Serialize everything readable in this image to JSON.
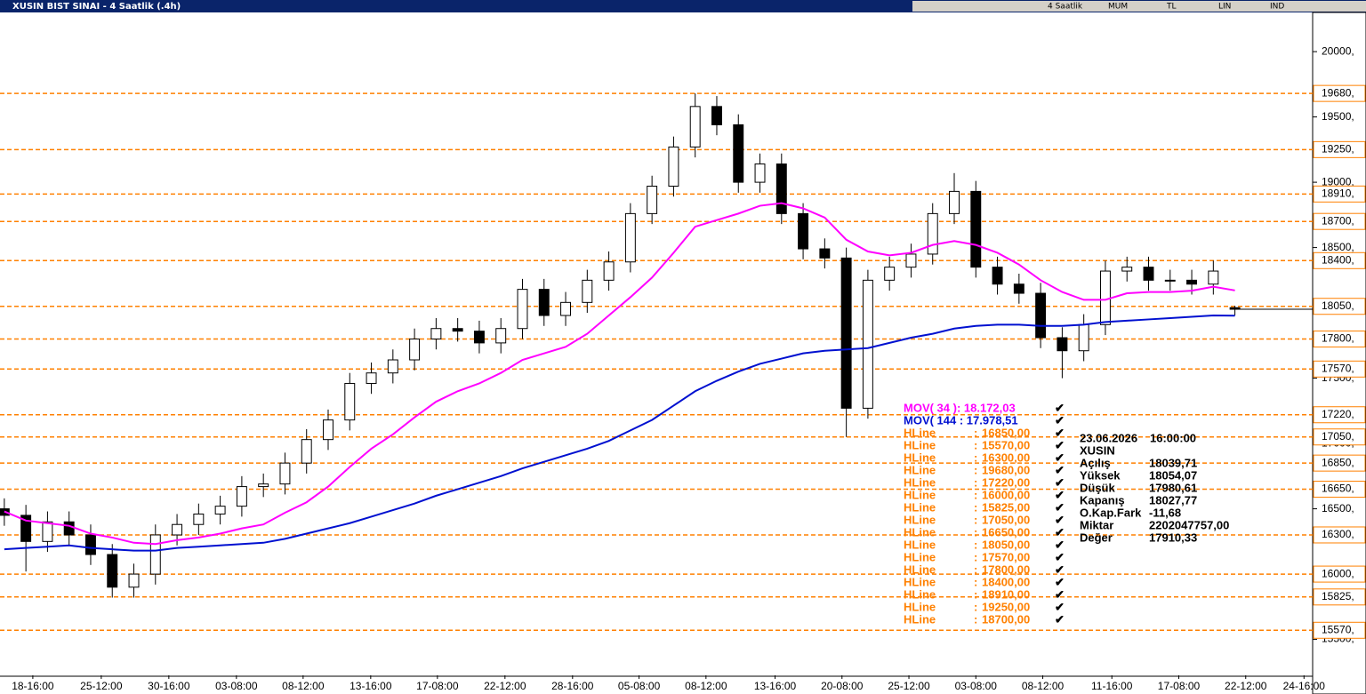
{
  "window": {
    "title": "XUSIN BIST SINAI - 4 Saatlik (.4h)",
    "toolbar": [
      "4 Saatlik",
      "MUM",
      "TL",
      "LIN",
      "IND"
    ]
  },
  "chart_data": {
    "type": "candlestick",
    "xlim": [
      -0.2,
      60.6
    ],
    "xticks": [
      {
        "value": 1.32,
        "label": "18-16:00"
      },
      {
        "value": 4.49,
        "label": "25-12:00"
      },
      {
        "value": 7.62,
        "label": "30-16:00"
      },
      {
        "value": 10.75,
        "label": "03-08:00"
      },
      {
        "value": 13.84,
        "label": "08-12:00"
      },
      {
        "value": 16.97,
        "label": "13-16:00"
      },
      {
        "value": 20.06,
        "label": "17-08:00"
      },
      {
        "value": 23.19,
        "label": "22-12:00"
      },
      {
        "value": 26.32,
        "label": "28-16:00"
      },
      {
        "value": 29.4,
        "label": "05-08:00"
      },
      {
        "value": 32.5,
        "label": "08-12:00"
      },
      {
        "value": 35.7,
        "label": "13-16:00"
      },
      {
        "value": 38.8,
        "label": "20-08:00"
      },
      {
        "value": 41.9,
        "label": "25-12:00"
      },
      {
        "value": 45.0,
        "label": "03-08:00"
      },
      {
        "value": 48.1,
        "label": "08-12:00"
      },
      {
        "value": 51.3,
        "label": "11-16:00"
      },
      {
        "value": 54.4,
        "label": "17-08:00"
      },
      {
        "value": 57.5,
        "label": "22-12:00"
      },
      {
        "value": 60.2,
        "label": "24-16:00"
      }
    ],
    "ylim": [
      15225,
      20300
    ],
    "yticks": [
      {
        "value": 20000,
        "label": "20000,"
      },
      {
        "value": 19500,
        "label": "19500,"
      },
      {
        "value": 19000,
        "label": "19000,"
      },
      {
        "value": 18500,
        "label": "18500,"
      },
      {
        "value": 17500,
        "label": "17500,"
      },
      {
        "value": 17000,
        "label": "17000,"
      },
      {
        "value": 16500,
        "label": "16500,"
      },
      {
        "value": 15500,
        "label": "15500,"
      }
    ],
    "open": [
      16500,
      16450,
      16250,
      16400,
      16300,
      16150,
      15900,
      16000,
      16300,
      16380,
      16460,
      16520,
      16670,
      16690,
      16850,
      17030,
      17180,
      17460,
      17540,
      17640,
      17800,
      17880,
      17860,
      17770,
      17880,
      18180,
      17980,
      18080,
      18250,
      18390,
      18760,
      18970,
      19270,
      19580,
      19440,
      19000,
      19140,
      18760,
      18490,
      18420,
      17270,
      18250,
      18350,
      18450,
      18760,
      18930,
      18350,
      18220,
      18150,
      17810,
      17710,
      17910,
      18320,
      18350,
      18250,
      18250,
      18220,
      18039.71
    ],
    "high": [
      16580,
      16530,
      16480,
      16480,
      16380,
      16230,
      16080,
      16380,
      16460,
      16540,
      16600,
      16750,
      16770,
      16930,
      17110,
      17260,
      17540,
      17620,
      17720,
      17880,
      17960,
      17960,
      17940,
      17960,
      18260,
      18260,
      18160,
      18330,
      18470,
      18840,
      19050,
      19350,
      19680,
      19660,
      19520,
      19220,
      19220,
      18840,
      18570,
      18500,
      18330,
      18430,
      18530,
      18840,
      19070,
      19010,
      18430,
      18300,
      18230,
      17890,
      17990,
      18400,
      18430,
      18430,
      18330,
      18330,
      18400,
      18054.07
    ],
    "low": [
      16370,
      16020,
      16170,
      16220,
      16070,
      15820,
      15820,
      15920,
      16220,
      16300,
      16380,
      16440,
      16590,
      16610,
      16770,
      16950,
      17100,
      17380,
      17460,
      17560,
      17720,
      17780,
      17690,
      17690,
      17800,
      17900,
      17900,
      18000,
      18170,
      18310,
      18680,
      18890,
      19190,
      19360,
      18920,
      18920,
      18680,
      18410,
      18340,
      17050,
      17190,
      18170,
      18270,
      18370,
      18680,
      18270,
      18140,
      18070,
      17730,
      17500,
      17630,
      17830,
      18240,
      18170,
      18170,
      18140,
      18140,
      17980.61
    ],
    "close": [
      16450,
      16250,
      16400,
      16300,
      16150,
      15900,
      16000,
      16300,
      16380,
      16460,
      16520,
      16670,
      16690,
      16850,
      17030,
      17180,
      17460,
      17540,
      17640,
      17800,
      17880,
      17860,
      17770,
      17880,
      18180,
      17980,
      18080,
      18250,
      18390,
      18760,
      18970,
      19270,
      19580,
      19440,
      19000,
      19140,
      18760,
      18490,
      18420,
      17270,
      18250,
      18350,
      18450,
      18760,
      18930,
      18350,
      18220,
      18150,
      17810,
      17710,
      17910,
      18320,
      18350,
      18250,
      18250,
      18220,
      18320,
      18027.77
    ],
    "up_color": "#ffffff",
    "down_color": "#000000",
    "series": [
      {
        "name": "MOV( 144 : 17.978,51",
        "color": "#0010d0",
        "values": [
          16190,
          16200,
          16210,
          16220,
          16200,
          16190,
          16180,
          16180,
          16200,
          16210,
          16220,
          16230,
          16240,
          16270,
          16310,
          16350,
          16390,
          16440,
          16490,
          16540,
          16600,
          16650,
          16700,
          16750,
          16810,
          16860,
          16910,
          16960,
          17020,
          17100,
          17180,
          17290,
          17400,
          17480,
          17550,
          17610,
          17650,
          17690,
          17710,
          17720,
          17730,
          17770,
          17810,
          17840,
          17880,
          17900,
          17910,
          17910,
          17900,
          17900,
          17910,
          17930,
          17940,
          17950,
          17960,
          17970,
          17980,
          17978.51
        ]
      },
      {
        "name": "MOV( 34 ): 18.172,03",
        "color": "#ff00ff",
        "values": [
          16480,
          16410,
          16390,
          16370,
          16310,
          16280,
          16240,
          16230,
          16260,
          16280,
          16310,
          16350,
          16380,
          16470,
          16550,
          16670,
          16820,
          16960,
          17070,
          17200,
          17320,
          17400,
          17460,
          17540,
          17640,
          17690,
          17740,
          17840,
          17980,
          18120,
          18270,
          18460,
          18660,
          18710,
          18760,
          18820,
          18840,
          18800,
          18730,
          18560,
          18470,
          18440,
          18460,
          18520,
          18550,
          18520,
          18460,
          18370,
          18250,
          18160,
          18100,
          18100,
          18150,
          18160,
          18160,
          18170,
          18200,
          18172.03
        ]
      }
    ],
    "hlines": {
      "name": "HLine",
      "separator": ":",
      "check": "✔",
      "color": "#ff8000",
      "values": [
        16850,
        15570,
        16300,
        19680,
        17220,
        16000,
        15825,
        17050,
        16650,
        18050,
        17570,
        17800,
        18400,
        18910,
        19250,
        18700
      ],
      "value_labels": [
        "16850,00",
        "15570,00",
        "16300,00",
        "19680,00",
        "17220,00",
        "16000,00",
        "15825,00",
        "17050,00",
        "16650,00",
        "18050,00",
        "17570,00",
        "17800,00",
        "18400,00",
        "18910,00",
        "19250,00",
        "18700,00"
      ],
      "axis_labels": [
        "16850,",
        "15570,",
        "16300,",
        "19680,",
        "17220,",
        "16000,",
        "15825,",
        "17050,",
        "16650,",
        "18050,",
        "17570,",
        "17800,",
        "18400,",
        "18910,",
        "19250,",
        "18700,"
      ]
    },
    "info": {
      "date": "23.06.2026",
      "time": "16:00:00",
      "symbol": "XUSIN",
      "rows": [
        [
          "Açılış",
          "18039,71"
        ],
        [
          "Yüksek",
          "18054,07"
        ],
        [
          "Düşük",
          "17980,61"
        ],
        [
          "Kapanış",
          "18027,77"
        ],
        [
          "O.Kap.Fark",
          "-11,68"
        ],
        [
          "Miktar",
          "2202047757,00"
        ],
        [
          "Değer",
          "17910,33"
        ]
      ]
    }
  }
}
